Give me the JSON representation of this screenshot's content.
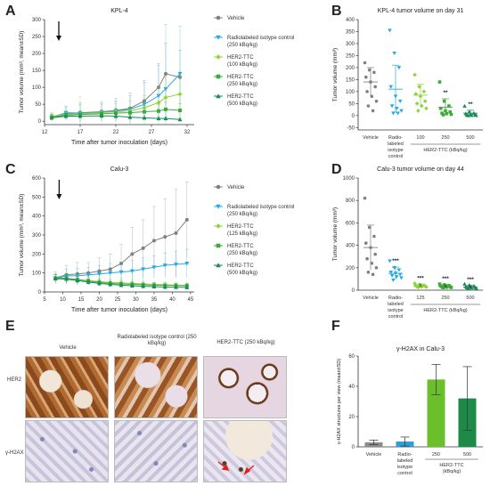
{
  "panels": {
    "A": {
      "letter": "A",
      "title": "KPL-4",
      "xlabel": "Time after tumor inoculation (days)",
      "ylabel": "Tumor volume (mm³, mean±SD)",
      "legend": [
        "Vehicle",
        "Radiolabeled isotype control (250 kBq/kg)",
        "HER2-TTC (100 kBq/kg)",
        "HER2-TTC (250 kBq/kg)",
        "HER2-TTC (500 kBq/kg)"
      ]
    },
    "B": {
      "letter": "B",
      "title": "KPL-4 tumor volume on day 31",
      "ylabel": "Tumor volume (mm³)",
      "group_label": "HER2-TTC (kBq/kg)",
      "significance": [
        "",
        "",
        "",
        "**",
        "**"
      ]
    },
    "C": {
      "letter": "C",
      "title": "Calu-3",
      "xlabel": "Time after tumor inoculation (days)",
      "ylabel": "Tumor volume (mm³, mean±SD)",
      "legend": [
        "Vehicle",
        "Radiolabeled isotype control (250 kBq/kg)",
        "HER2-TTC (125 kBq/kg)",
        "HER2-TTC (250 kBq/kg)",
        "HER2-TTC (500 kBq/kg)"
      ]
    },
    "D": {
      "letter": "D",
      "title": "Calu-3 tumor volume on day 44",
      "ylabel": "Tumor volume (mm³)",
      "group_label": "HER2-TTC (kBq/kg)",
      "significance": [
        "",
        "***",
        "***",
        "***",
        "***"
      ],
      "significance2": [
        "",
        "",
        "#",
        "#",
        "#"
      ]
    },
    "E": {
      "letter": "E",
      "col_labels": [
        "Vehicle",
        "Radiolabeled isotype control (250 kBq/kg)",
        "HER2-TTC (250 kBq/kg)"
      ],
      "row_labels": [
        "HER2",
        "γ-H2AX"
      ]
    },
    "F": {
      "letter": "F",
      "title": "γ-H2AX in Calu-3",
      "ylabel": "γ-H2AX structures per view (mean±SD)",
      "group_label": "HER2-TTC (kBq/kg)"
    }
  },
  "colors": {
    "vehicle": "#808080",
    "isotype": "#29a9e0",
    "ttc_low": "#8dd43a",
    "ttc_mid": "#3faa3a",
    "ttc_high": "#1a8a5a",
    "f_bar_vehicle": "#8c8c8c",
    "f_bar_isotype": "#2b9fd6",
    "f_bar_250": "#6abf2a",
    "f_bar_500": "#1e8a48"
  },
  "chart_data": [
    {
      "panel": "A",
      "type": "line",
      "title": "KPL-4",
      "xlabel": "Time after tumor inoculation (days)",
      "ylabel": "Tumor volume (mm³, mean±SD)",
      "xlim": [
        12,
        33
      ],
      "ylim": [
        -10,
        300
      ],
      "xticks": [
        12,
        17,
        22,
        27,
        32
      ],
      "yticks": [
        0,
        50,
        100,
        150,
        200,
        250,
        300
      ],
      "annotation": "↓ day 14",
      "x": [
        13,
        15,
        17,
        20,
        22,
        24,
        26,
        28,
        29,
        31
      ],
      "series": [
        {
          "name": "Vehicle",
          "values": [
            10,
            22,
            25,
            28,
            32,
            38,
            60,
            100,
            140,
            130
          ],
          "err": [
            10,
            20,
            30,
            30,
            35,
            45,
            55,
            70,
            90,
            80
          ]
        },
        {
          "name": "Radiolabeled isotype control (250 kBq/kg)",
          "values": [
            12,
            25,
            24,
            26,
            30,
            35,
            50,
            75,
            95,
            140
          ],
          "err": [
            12,
            20,
            25,
            25,
            30,
            40,
            70,
            90,
            190,
            140
          ]
        },
        {
          "name": "HER2-TTC (100 kBq/kg)",
          "values": [
            15,
            20,
            22,
            25,
            28,
            30,
            40,
            55,
            70,
            80
          ],
          "err": [
            10,
            15,
            50,
            25,
            25,
            30,
            35,
            45,
            60,
            55
          ]
        },
        {
          "name": "HER2-TTC (250 kBq/kg)",
          "values": [
            12,
            18,
            20,
            22,
            24,
            25,
            28,
            30,
            35,
            32
          ],
          "err": [
            8,
            10,
            12,
            12,
            14,
            15,
            18,
            20,
            22,
            20
          ]
        },
        {
          "name": "HER2-TTC (500 kBq/kg)",
          "values": [
            10,
            15,
            15,
            16,
            15,
            12,
            10,
            8,
            8,
            5
          ],
          "err": [
            5,
            8,
            8,
            8,
            8,
            6,
            6,
            5,
            5,
            4
          ]
        }
      ]
    },
    {
      "panel": "B",
      "type": "scatter",
      "title": "KPL-4 tumor volume on day 31",
      "ylabel": "Tumor volume (mm³)",
      "categories": [
        "Vehicle",
        "Radio-labeled isotype control",
        "100",
        "250",
        "500"
      ],
      "ylim": [
        -60,
        400
      ],
      "yticks": [
        -50,
        0,
        50,
        100,
        150,
        200,
        250,
        300,
        350,
        400
      ],
      "group_label": "HER2-TTC (kBq/kg)",
      "points": [
        [
          220,
          190,
          180,
          160,
          140,
          120,
          100,
          80,
          60,
          40,
          20
        ],
        [
          355,
          260,
          200,
          120,
          80,
          60,
          40,
          30,
          20,
          10,
          10
        ],
        [
          170,
          120,
          100,
          90,
          80,
          60,
          50,
          40,
          30,
          20
        ],
        [
          140,
          60,
          40,
          30,
          20,
          15,
          10,
          8,
          5,
          3
        ],
        [
          40,
          15,
          10,
          8,
          5,
          3,
          2,
          1,
          1,
          0
        ]
      ],
      "mean": [
        140,
        110,
        85,
        35,
        10
      ],
      "sd": [
        60,
        100,
        45,
        35,
        12
      ],
      "significance": [
        "",
        "",
        "",
        "**",
        "**"
      ]
    },
    {
      "panel": "C",
      "type": "line",
      "title": "Calu-3",
      "xlabel": "Time after tumor inoculation (days)",
      "ylabel": "Tumor volume (mm³, mean±SD)",
      "xlim": [
        5,
        46
      ],
      "ylim": [
        0,
        600
      ],
      "xticks": [
        5,
        10,
        15,
        20,
        25,
        30,
        35,
        40,
        45
      ],
      "yticks": [
        0,
        100,
        200,
        300,
        400,
        500,
        600
      ],
      "annotation": "↓ day 9",
      "x": [
        8,
        11,
        14,
        17,
        20,
        23,
        26,
        29,
        32,
        35,
        38,
        41,
        44
      ],
      "series": [
        {
          "name": "Vehicle",
          "values": [
            75,
            90,
            95,
            100,
            110,
            120,
            150,
            200,
            230,
            270,
            290,
            310,
            380
          ],
          "err": [
            30,
            50,
            60,
            55,
            70,
            80,
            100,
            140,
            150,
            180,
            200,
            230,
            200
          ]
        },
        {
          "name": "Radiolabeled isotype control (250 kBq/kg)",
          "values": [
            70,
            85,
            85,
            90,
            95,
            100,
            105,
            110,
            120,
            130,
            140,
            145,
            150
          ],
          "err": [
            25,
            35,
            40,
            40,
            45,
            50,
            50,
            55,
            60,
            60,
            65,
            70,
            75
          ]
        },
        {
          "name": "HER2-TTC (125 kBq/kg)",
          "values": [
            70,
            70,
            65,
            60,
            55,
            50,
            48,
            45,
            42,
            40,
            38,
            36,
            35
          ],
          "err": [
            20,
            25,
            25,
            22,
            20,
            18,
            18,
            17,
            16,
            15,
            15,
            14,
            14
          ]
        },
        {
          "name": "HER2-TTC (250 kBq/kg)",
          "values": [
            72,
            72,
            65,
            58,
            50,
            45,
            42,
            40,
            38,
            36,
            35,
            34,
            33
          ],
          "err": [
            20,
            25,
            22,
            20,
            18,
            16,
            15,
            15,
            14,
            13,
            13,
            12,
            12
          ]
        },
        {
          "name": "HER2-TTC (500 kBq/kg)",
          "values": [
            70,
            68,
            60,
            52,
            45,
            40,
            36,
            33,
            30,
            28,
            26,
            25,
            24
          ],
          "err": [
            20,
            22,
            20,
            18,
            16,
            14,
            13,
            12,
            11,
            10,
            10,
            9,
            9
          ]
        }
      ]
    },
    {
      "panel": "D",
      "type": "scatter",
      "title": "Calu-3 tumor volume on day 44",
      "ylabel": "Tumor volume (mm³)",
      "categories": [
        "Vehicle",
        "Radio-labeled isotype control",
        "125",
        "250",
        "500"
      ],
      "ylim": [
        0,
        1000
      ],
      "yticks": [
        0,
        200,
        400,
        600,
        800,
        1000
      ],
      "group_label": "HER2-TTC (kBq/kg)",
      "points": [
        [
          820,
          560,
          480,
          420,
          380,
          320,
          280,
          240,
          200,
          160,
          140
        ],
        [
          260,
          200,
          180,
          160,
          150,
          140,
          130,
          120,
          110,
          90
        ],
        [
          60,
          50,
          45,
          40,
          38,
          35,
          32,
          30,
          28,
          25
        ],
        [
          55,
          48,
          42,
          38,
          34,
          30,
          28,
          26,
          24,
          22
        ],
        [
          55,
          45,
          38,
          32,
          28,
          25,
          22,
          20,
          18,
          15
        ]
      ],
      "mean": [
        380,
        150,
        35,
        33,
        26
      ],
      "sd": [
        200,
        55,
        15,
        14,
        15
      ],
      "significance": [
        "",
        "***",
        "***",
        "***",
        "***"
      ]
    },
    {
      "panel": "F",
      "type": "bar",
      "title": "γ-H2AX in Calu-3",
      "ylabel": "γ-H2AX structures per view (mean±SD)",
      "categories": [
        "Vehicle",
        "Radio-labeled isotype control",
        "250",
        "500"
      ],
      "values": [
        3,
        3.5,
        44.5,
        32
      ],
      "err": [
        1.5,
        3,
        10,
        21
      ],
      "ylim": [
        0,
        60
      ],
      "yticks": [
        0,
        20,
        40,
        60
      ],
      "group_label": "HER2-TTC (kBq/kg)"
    }
  ]
}
